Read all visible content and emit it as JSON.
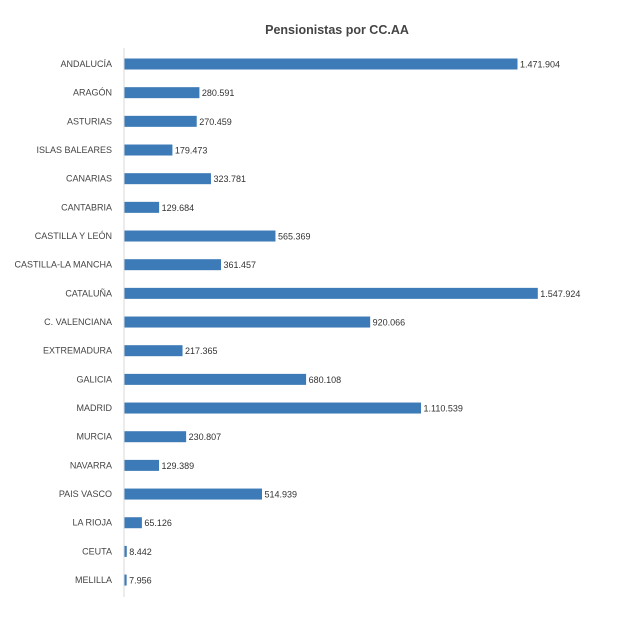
{
  "chart_data": {
    "type": "bar",
    "orientation": "horizontal",
    "title": "Pensionistas por CC.AA",
    "xlabel": "",
    "ylabel": "",
    "grid": false,
    "legend": "none",
    "bar_color": "#3d7ab8",
    "categories": [
      "ANDALUCÍA",
      "ARAGÓN",
      "ASTURIAS",
      "ISLAS BALEARES",
      "CANARIAS",
      "CANTABRIA",
      "CASTILLA Y LEÓN",
      "CASTILLA-LA MANCHA",
      "CATALUÑA",
      "C. VALENCIANA",
      "EXTREMADURA",
      "GALICIA",
      "MADRID",
      "MURCIA",
      "NAVARRA",
      "PAIS VASCO",
      "LA RIOJA",
      "CEUTA",
      "MELILLA"
    ],
    "values": [
      1471904,
      280591,
      270459,
      179473,
      323781,
      129684,
      565369,
      361457,
      1547924,
      920066,
      217365,
      680108,
      1110539,
      230807,
      129389,
      514939,
      65126,
      8442,
      7956
    ],
    "data_labels": [
      "1.471.904",
      "280.591",
      "270.459",
      "179.473",
      "323.781",
      "129.684",
      "565.369",
      "361.457",
      "1.547.924",
      "920.066",
      "217.365",
      "680.108",
      "1.110.539",
      "230.807",
      "129.389",
      "514.939",
      "65.126",
      "8.442",
      "7.956"
    ]
  }
}
